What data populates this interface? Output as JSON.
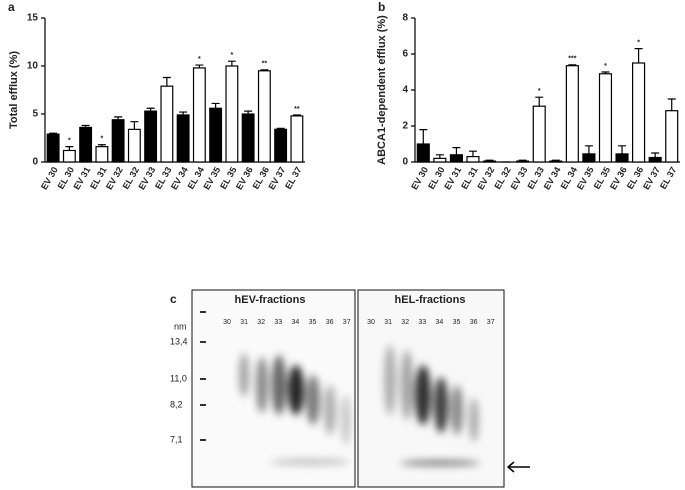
{
  "chart_data": [
    {
      "type": "bar",
      "label": "a",
      "y_label": "Total efflux (%)",
      "categories": [
        "EV 30",
        "EL 30",
        "EV 31",
        "EL 31",
        "EV 32",
        "EL 32",
        "EV 33",
        "EL 33",
        "EV 34",
        "EL 34",
        "EV 35",
        "EL 35",
        "EV 36",
        "EL 36",
        "EV 37",
        "EL 37"
      ],
      "values": [
        2.9,
        1.2,
        3.6,
        1.6,
        4.4,
        3.4,
        5.3,
        7.9,
        4.9,
        9.8,
        5.6,
        10.0,
        5.0,
        9.5,
        3.4,
        4.8
      ],
      "errors": [
        0.1,
        0.4,
        0.2,
        0.2,
        0.3,
        0.8,
        0.3,
        0.9,
        0.3,
        0.3,
        0.5,
        0.5,
        0.3,
        0.1,
        0.1,
        0.1
      ],
      "annotations": [
        null,
        "*",
        null,
        "*",
        null,
        null,
        null,
        null,
        null,
        "*",
        null,
        "*",
        null,
        "**",
        null,
        "**"
      ],
      "colors": [
        "#000000",
        "#ffffff",
        "#000000",
        "#ffffff",
        "#000000",
        "#ffffff",
        "#000000",
        "#ffffff",
        "#000000",
        "#ffffff",
        "#000000",
        "#ffffff",
        "#000000",
        "#ffffff",
        "#000000",
        "#ffffff"
      ],
      "ylim": [
        0,
        15
      ],
      "yticks": [
        0,
        5,
        10,
        15
      ]
    },
    {
      "type": "bar",
      "label": "b",
      "y_label": "ABCA1-dependent efflux (%)",
      "categories": [
        "EV 30",
        "EL 30",
        "EV 31",
        "EL 31",
        "EV 32",
        "EL 32",
        "EV 33",
        "EL 33",
        "EV 34",
        "EL 34",
        "EV 35",
        "EL 35",
        "EV 36",
        "EL 36",
        "EV 37",
        "EL 37"
      ],
      "values": [
        1.0,
        0.2,
        0.4,
        0.3,
        0.05,
        0,
        0.05,
        3.1,
        0.05,
        5.35,
        0.45,
        4.9,
        0.45,
        5.5,
        0.25,
        2.85
      ],
      "errors": [
        0.8,
        0.2,
        0.4,
        0.3,
        0.05,
        0,
        0.05,
        0.5,
        0.05,
        0.05,
        0.45,
        0.1,
        0.45,
        0.8,
        0.25,
        0.65
      ],
      "annotations": [
        null,
        null,
        null,
        null,
        null,
        null,
        null,
        "*",
        null,
        "***",
        null,
        "*",
        null,
        "*",
        null,
        null
      ],
      "colors": [
        "#000000",
        "#ffffff",
        "#000000",
        "#ffffff",
        "#000000",
        "#ffffff",
        "#000000",
        "#ffffff",
        "#000000",
        "#ffffff",
        "#000000",
        "#ffffff",
        "#000000",
        "#ffffff",
        "#000000",
        "#ffffff"
      ],
      "ylim": [
        0,
        8
      ],
      "yticks": [
        0,
        2,
        4,
        6,
        8
      ]
    }
  ],
  "gel": {
    "label": "c",
    "unit": "nm",
    "groups": [
      {
        "title": "hEV-fractions",
        "lanes": [
          "30",
          "31",
          "32",
          "33",
          "34",
          "35",
          "36",
          "37"
        ]
      },
      {
        "title": "hEL-fractions",
        "lanes": [
          "30",
          "31",
          "32",
          "33",
          "34",
          "35",
          "36",
          "37"
        ]
      }
    ],
    "markers": [
      "13,4",
      "11,0",
      "8,2",
      "7,1"
    ]
  }
}
